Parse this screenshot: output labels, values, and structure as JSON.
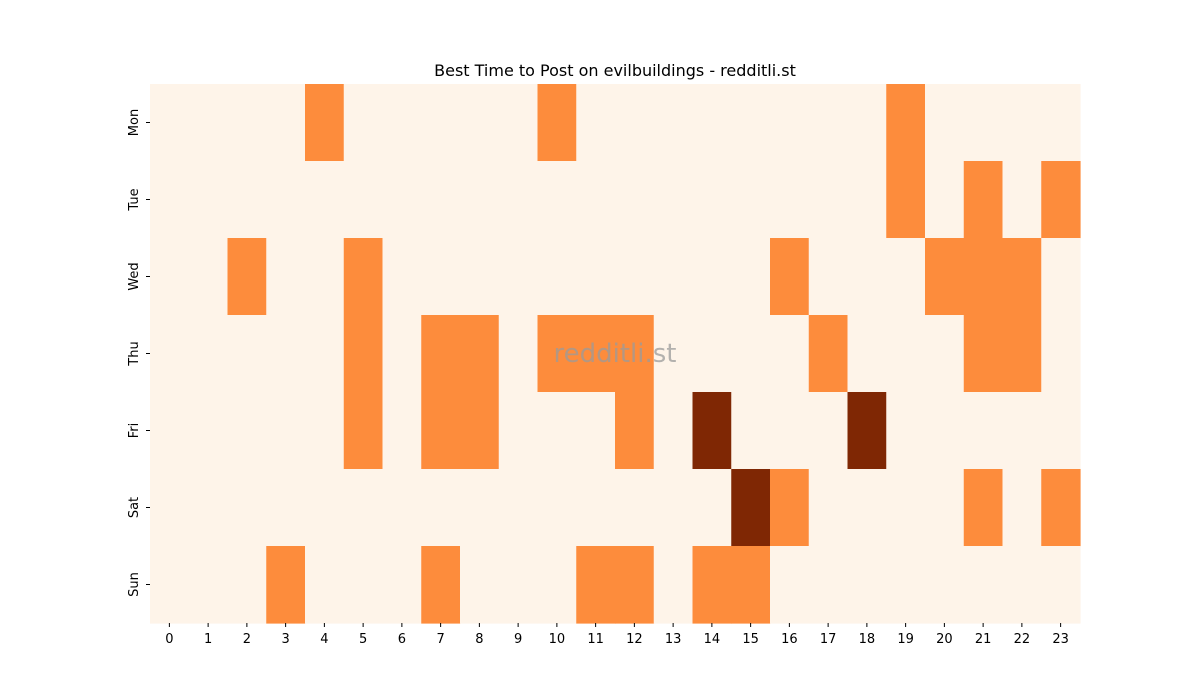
{
  "chart_data": {
    "type": "heatmap",
    "title": "Best Time to Post on evilbuildings - redditli.st",
    "watermark": "redditli.st",
    "x_labels": [
      "0",
      "1",
      "2",
      "3",
      "4",
      "5",
      "6",
      "7",
      "8",
      "9",
      "10",
      "11",
      "12",
      "13",
      "14",
      "15",
      "16",
      "17",
      "18",
      "19",
      "20",
      "21",
      "22",
      "23"
    ],
    "y_labels": [
      "Mon",
      "Tue",
      "Wed",
      "Thu",
      "Fri",
      "Sat",
      "Sun"
    ],
    "levels": 3,
    "colors": [
      "#fef4e9",
      "#fd8c3c",
      "#7f2704"
    ],
    "values": [
      [
        0,
        0,
        0,
        0,
        1,
        0,
        0,
        0,
        0,
        0,
        1,
        0,
        0,
        0,
        0,
        0,
        0,
        0,
        0,
        1,
        0,
        0,
        0,
        0
      ],
      [
        0,
        0,
        0,
        0,
        0,
        0,
        0,
        0,
        0,
        0,
        0,
        0,
        0,
        0,
        0,
        0,
        0,
        0,
        0,
        1,
        0,
        1,
        0,
        1
      ],
      [
        0,
        0,
        1,
        0,
        0,
        1,
        0,
        0,
        0,
        0,
        0,
        0,
        0,
        0,
        0,
        0,
        1,
        0,
        0,
        0,
        1,
        1,
        1,
        0
      ],
      [
        0,
        0,
        0,
        0,
        0,
        1,
        0,
        1,
        1,
        0,
        1,
        1,
        1,
        0,
        0,
        0,
        0,
        1,
        0,
        0,
        0,
        1,
        1,
        0
      ],
      [
        0,
        0,
        0,
        0,
        0,
        1,
        0,
        1,
        1,
        0,
        0,
        0,
        1,
        0,
        2,
        0,
        0,
        0,
        2,
        0,
        0,
        0,
        0,
        0
      ],
      [
        0,
        0,
        0,
        0,
        0,
        0,
        0,
        0,
        0,
        0,
        0,
        0,
        0,
        0,
        0,
        2,
        1,
        0,
        0,
        0,
        0,
        1,
        0,
        1
      ],
      [
        0,
        0,
        0,
        1,
        0,
        0,
        0,
        1,
        0,
        0,
        0,
        1,
        1,
        0,
        1,
        1,
        0,
        0,
        0,
        0,
        0,
        0,
        0,
        0
      ]
    ]
  }
}
